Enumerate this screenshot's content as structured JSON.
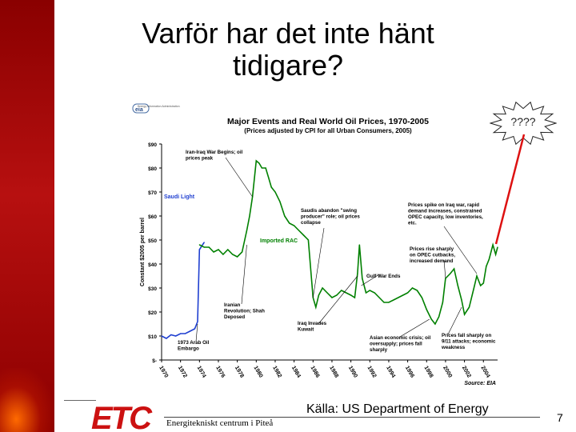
{
  "slide": {
    "title_line1": "Varför har det inte hänt",
    "title_line2": "tidigare?",
    "burst_label": "????",
    "source": "Källa: US Department of Energy",
    "footer": "Energitekniskt centrum i Piteå",
    "page_number": "7",
    "logo_text": "ETC",
    "colors": {
      "side_bar": "#b71010",
      "arrow": "#dd1111",
      "logo": "#cc1111",
      "imported": "#008000",
      "saudi": "#1f3fd0"
    }
  },
  "chart_data": {
    "type": "line",
    "title": "Major Events and Real World Oil Prices, 1970-2005",
    "subtitle": "(Prices adjusted by CPI for all Urban Consumers, 2005)",
    "source_note": "Source: EIA",
    "eia_logo": "eia",
    "eia_logo_caption": "Energy Information Administration",
    "ylabel": "Constant $2005 per barrel",
    "xlabel": "",
    "ylim": [
      0,
      90
    ],
    "y_ticks": [
      "$-",
      "$10",
      "$20",
      "$30",
      "$40",
      "$50",
      "$60",
      "$70",
      "$80",
      "$90"
    ],
    "y_tick_values": [
      0,
      10,
      20,
      30,
      40,
      50,
      60,
      70,
      80,
      90
    ],
    "xlim": [
      1970,
      2005.5
    ],
    "x_ticks": [
      "1970",
      "1972",
      "1974",
      "1976",
      "1978",
      "1980",
      "1982",
      "1984",
      "1986",
      "1988",
      "1990",
      "1992",
      "1994",
      "1996",
      "1998",
      "2000",
      "2002",
      "2004"
    ],
    "x_tick_values": [
      1970,
      1972,
      1974,
      1976,
      1978,
      1980,
      1982,
      1984,
      1986,
      1988,
      1990,
      1992,
      1994,
      1996,
      1998,
      2000,
      2002,
      2004
    ],
    "series": [
      {
        "name": "Saudi Light",
        "color": "#1f3fd0",
        "x": [
          1970,
          1970.5,
          1971,
          1971.5,
          1972,
          1972.5,
          1973,
          1973.5,
          1973.8,
          1974,
          1974.5
        ],
        "y": [
          10,
          9,
          10.5,
          10,
          11,
          11,
          12,
          13,
          16,
          46,
          49
        ]
      },
      {
        "name": "Imported RAC",
        "color": "#008000",
        "x": [
          1974,
          1974.5,
          1975,
          1975.5,
          1976,
          1976.5,
          1977,
          1977.5,
          1978,
          1978.5,
          1979,
          1979.3,
          1979.6,
          1980,
          1980.3,
          1980.6,
          1981,
          1981.3,
          1981.6,
          1982,
          1982.5,
          1983,
          1983.5,
          1984,
          1984.5,
          1985,
          1985.5,
          1986,
          1986.3,
          1986.6,
          1987,
          1987.5,
          1988,
          1988.5,
          1989,
          1989.5,
          1990,
          1990.4,
          1990.7,
          1990.9,
          1991.2,
          1991.6,
          1992,
          1992.5,
          1993,
          1993.5,
          1994,
          1994.5,
          1995,
          1995.5,
          1996,
          1996.5,
          1997,
          1997.5,
          1998,
          1998.5,
          1998.9,
          1999.3,
          1999.7,
          2000,
          2000.5,
          2000.9,
          2001.3,
          2001.7,
          2002,
          2002.5,
          2003,
          2003.3,
          2003.7,
          2004,
          2004.3,
          2004.6,
          2005,
          2005.3,
          2005.5
        ],
        "y": [
          48,
          47,
          47,
          45,
          46,
          44,
          46,
          44,
          43,
          45,
          54,
          60,
          68,
          83,
          82,
          80,
          80,
          76,
          72,
          70,
          66,
          60,
          57,
          56,
          54,
          52,
          50,
          26,
          22,
          27,
          30,
          28,
          26,
          27,
          29,
          28,
          27,
          26,
          36,
          48,
          34,
          28,
          29,
          28,
          26,
          24,
          24,
          25,
          26,
          27,
          28,
          30,
          29,
          26,
          21,
          17,
          15,
          18,
          24,
          34,
          36,
          38,
          31,
          25,
          19,
          22,
          30,
          35,
          31,
          32,
          39,
          42,
          48,
          44,
          47
        ]
      }
    ],
    "annotations": [
      {
        "text": "Iran-Iraq War Begins; oil prices peak",
        "lines": [
          "Iran-Iraq War Begins; oil",
          "prices peak"
        ]
      },
      {
        "text": "Saudis abandon \"swing producer\" role; oil prices collapse",
        "lines": [
          "Saudis abandon \"swing",
          "producer\" role; oil prices",
          "collapse"
        ]
      },
      {
        "text": "Prices spike on Iraq war, rapid demand increases, constrained OPEC capacity, low inventories, etc.",
        "lines": [
          "Prices spike on Iraq war, rapid",
          "demand increases, constrained",
          "OPEC capacity, low inventories,",
          "etc."
        ]
      },
      {
        "text": "Prices rise sharply on OPEC cutbacks, increased demand",
        "lines": [
          "Prices rise sharply",
          "on OPEC cutbacks,",
          "increased demand"
        ]
      },
      {
        "text": "Gulf War Ends",
        "lines": [
          "Gulf War Ends"
        ]
      },
      {
        "text": "Iranian Revolution; Shah Deposed",
        "lines": [
          "Iranian",
          "Revolution; Shah",
          "Deposed"
        ]
      },
      {
        "text": "Iraq Invades Kuwait",
        "lines": [
          "Iraq Invades",
          "Kuwait"
        ]
      },
      {
        "text": "1973 Arab Oil Embargo",
        "lines": [
          "1973 Arab Oil",
          "Embargo"
        ]
      },
      {
        "text": "Asian economic crisis; oil oversupply; prices fall sharply",
        "lines": [
          "Asian economic crisis; oil",
          "oversupply; prices fall",
          "sharply"
        ]
      },
      {
        "text": "Prices fall sharply on 9/11 attacks; economic weakness",
        "lines": [
          "Prices fall sharply on",
          "9/11 attacks; economic",
          "weakness"
        ]
      }
    ],
    "grid": false,
    "legend": "inline labels"
  }
}
